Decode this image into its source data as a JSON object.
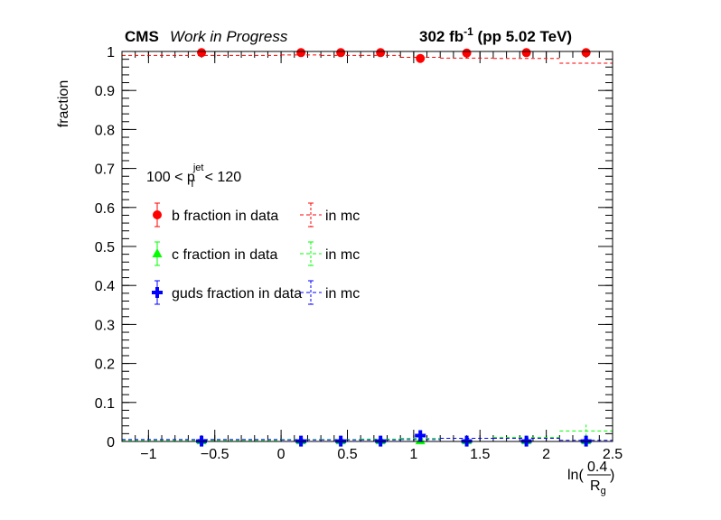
{
  "header": {
    "experiment": "CMS",
    "status": "Work in Progress",
    "lumi_value": "302 fb",
    "lumi_exp": "-1",
    "lumi_tail": " (pp 5.02 TeV)"
  },
  "selection": {
    "prefix": "100 < p",
    "sup": "jet",
    "sub": "T",
    "suffix": " < 120"
  },
  "legend": {
    "placement": "left-middle",
    "entries": [
      {
        "label": "b fraction in data",
        "mc_label": "in mc"
      },
      {
        "label": "c fraction in data",
        "mc_label": "in mc"
      },
      {
        "label": "guds fraction in data",
        "mc_label": "in mc"
      }
    ]
  },
  "colors": {
    "b": "#ff0000",
    "c": "#00ff00",
    "guds": "#0000ff"
  },
  "chart_data": {
    "type": "scatter",
    "ylabel": "fraction",
    "xlabel_parts": {
      "pre": "ln(",
      "num": "0.4",
      "den": "R",
      "den_sub": "g",
      "post": ")"
    },
    "xlim": [
      -1.2,
      2.5
    ],
    "ylim": [
      0,
      1
    ],
    "xticks": [
      -1,
      -0.5,
      0,
      0.5,
      1,
      1.5,
      2,
      2.5
    ],
    "xtick_labels": [
      "−1",
      "−0.5",
      "0",
      "0.5",
      "1",
      "1.5",
      "2",
      "2.5"
    ],
    "yticks": [
      0,
      0.1,
      0.2,
      0.3,
      0.4,
      0.5,
      0.6,
      0.7,
      0.8,
      0.9,
      1
    ],
    "ytick_labels": [
      "0",
      "0.1",
      "0.2",
      "0.3",
      "0.4",
      "0.5",
      "0.6",
      "0.7",
      "0.8",
      "0.9",
      "1"
    ],
    "bin_edges": [
      -1.2,
      0,
      0.3,
      0.6,
      0.9,
      1.2,
      1.6,
      2.1,
      2.5
    ],
    "x": [
      -0.6,
      0.15,
      0.45,
      0.75,
      1.05,
      1.4,
      1.85,
      2.3
    ],
    "series": [
      {
        "name": "b fraction in data",
        "key": "b",
        "marker": "circle",
        "values": [
          0.997,
          0.997,
          0.997,
          0.997,
          0.982,
          0.996,
          0.997,
          0.997
        ],
        "mc": [
          0.99,
          0.991,
          0.99,
          0.99,
          0.985,
          0.983,
          0.982,
          0.97
        ]
      },
      {
        "name": "c fraction in data",
        "key": "c",
        "marker": "triangle",
        "values": [
          0.002,
          0.002,
          0.002,
          0.002,
          0.002,
          0.002,
          0.002,
          0.002
        ],
        "mc": [
          0.003,
          0.005,
          0.005,
          0.006,
          0.008,
          0.008,
          0.01,
          0.027
        ]
      },
      {
        "name": "guds fraction in data",
        "key": "guds",
        "marker": "cross",
        "values": [
          0.001,
          0.001,
          0.001,
          0.001,
          0.015,
          0.001,
          0.001,
          0.001
        ],
        "mc": [
          0.005,
          0.004,
          0.004,
          0.004,
          0.005,
          0.008,
          0.008,
          0.003
        ]
      }
    ]
  }
}
